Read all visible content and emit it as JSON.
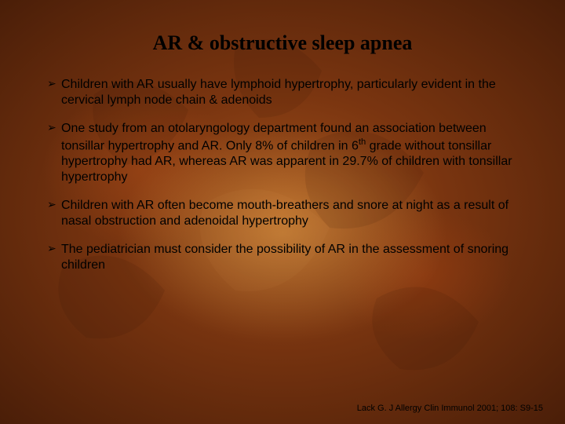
{
  "slide": {
    "title": "AR & obstructive sleep apnea",
    "title_fontsize": 26,
    "title_color": "#000000",
    "title_font": "Times New Roman",
    "bullets": [
      "Children with AR usually have lymphoid hypertrophy, particularly evident in the cervical lymph node chain & adenoids",
      "One study from an otolaryngology department found an association between tonsillar hypertrophy and AR. Only 8% of children in 6th grade without tonsillar hypertrophy had AR, whereas AR was apparent in 29.7% of children with tonsillar hypertrophy",
      "Children with AR often become mouth-breathers and snore at night as a result of nasal obstruction and adenoidal hypertrophy",
      "The pediatrician must consider the possibility of AR in the assessment of snoring children"
    ],
    "bullet_fontsize": 16,
    "bullet_line_height": 1.25,
    "bullet_color": "#000000",
    "citation": "Lack G. J Allergy Clin Immunol 2001; 108: S9-15",
    "citation_fontsize": 11,
    "background": {
      "base_gradient_inner": "#a0501a",
      "base_gradient_mid": "#7a3510",
      "base_gradient_outer": "#4a1e08",
      "highlight_color": "#ffc864",
      "leaf_tint": "rgba(60,20,5,0.25)"
    }
  }
}
